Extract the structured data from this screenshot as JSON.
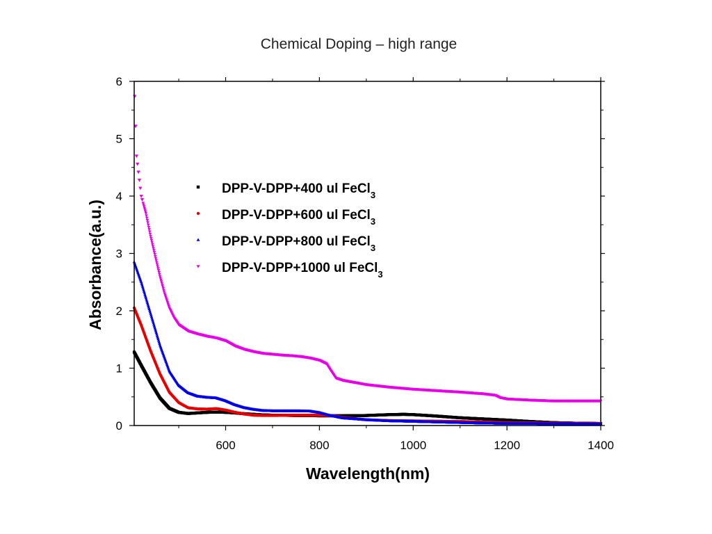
{
  "page": {
    "title": "Chemical Doping – high range"
  },
  "chart_data": {
    "type": "scatter",
    "title": "Chemical Doping – high range",
    "xlabel": "Wavelength(nm)",
    "ylabel": "Absorbance(a.u.)",
    "xlim": [
      405,
      1400
    ],
    "ylim": [
      0,
      6
    ],
    "x_ticks": [
      600,
      800,
      1000,
      1200,
      1400
    ],
    "y_ticks": [
      0,
      1,
      2,
      3,
      4,
      5,
      6
    ],
    "grid": false,
    "legend_position": "center-left",
    "series": [
      {
        "name": "DPP-V-DPP+400 ul FeCl3",
        "name_main": "DPP-V-DPP+400 ul FeCl",
        "name_sub": "3",
        "color": "#000000",
        "marker": "square",
        "points": [
          [
            405,
            1.28
          ],
          [
            420,
            1.05
          ],
          [
            440,
            0.75
          ],
          [
            460,
            0.48
          ],
          [
            480,
            0.3
          ],
          [
            500,
            0.23
          ],
          [
            520,
            0.21
          ],
          [
            540,
            0.22
          ],
          [
            560,
            0.23
          ],
          [
            580,
            0.235
          ],
          [
            600,
            0.23
          ],
          [
            620,
            0.22
          ],
          [
            640,
            0.205
          ],
          [
            660,
            0.195
          ],
          [
            680,
            0.185
          ],
          [
            700,
            0.18
          ],
          [
            750,
            0.175
          ],
          [
            800,
            0.17
          ],
          [
            850,
            0.17
          ],
          [
            900,
            0.175
          ],
          [
            950,
            0.19
          ],
          [
            980,
            0.195
          ],
          [
            1000,
            0.19
          ],
          [
            1050,
            0.165
          ],
          [
            1100,
            0.135
          ],
          [
            1150,
            0.115
          ],
          [
            1200,
            0.095
          ],
          [
            1250,
            0.07
          ],
          [
            1300,
            0.05
          ],
          [
            1350,
            0.04
          ],
          [
            1400,
            0.035
          ]
        ]
      },
      {
        "name": "DPP-V-DPP+600 ul FeCl3",
        "name_main": "DPP-V-DPP+600 ul FeCl",
        "name_sub": "3",
        "color": "#e60000",
        "marker": "circle",
        "points": [
          [
            405,
            2.05
          ],
          [
            420,
            1.75
          ],
          [
            440,
            1.3
          ],
          [
            460,
            0.9
          ],
          [
            480,
            0.58
          ],
          [
            500,
            0.4
          ],
          [
            520,
            0.31
          ],
          [
            540,
            0.29
          ],
          [
            560,
            0.285
          ],
          [
            580,
            0.295
          ],
          [
            600,
            0.27
          ],
          [
            620,
            0.23
          ],
          [
            640,
            0.2
          ],
          [
            660,
            0.18
          ],
          [
            680,
            0.175
          ],
          [
            700,
            0.175
          ],
          [
            750,
            0.18
          ],
          [
            800,
            0.18
          ],
          [
            830,
            0.17
          ],
          [
            850,
            0.14
          ],
          [
            900,
            0.1
          ],
          [
            950,
            0.085
          ],
          [
            1000,
            0.08
          ],
          [
            1050,
            0.075
          ],
          [
            1100,
            0.07
          ],
          [
            1150,
            0.06
          ],
          [
            1200,
            0.05
          ],
          [
            1300,
            0.04
          ],
          [
            1400,
            0.035
          ]
        ]
      },
      {
        "name": "DPP-V-DPP+800 ul FeCl3",
        "name_main": "DPP-V-DPP+800 ul FeCl",
        "name_sub": "3",
        "color": "#0000e6",
        "marker": "triangle-up",
        "points": [
          [
            405,
            2.85
          ],
          [
            420,
            2.5
          ],
          [
            440,
            1.95
          ],
          [
            460,
            1.4
          ],
          [
            480,
            0.95
          ],
          [
            500,
            0.7
          ],
          [
            520,
            0.57
          ],
          [
            540,
            0.51
          ],
          [
            560,
            0.49
          ],
          [
            580,
            0.48
          ],
          [
            600,
            0.43
          ],
          [
            620,
            0.36
          ],
          [
            640,
            0.31
          ],
          [
            660,
            0.28
          ],
          [
            680,
            0.26
          ],
          [
            700,
            0.255
          ],
          [
            750,
            0.255
          ],
          [
            780,
            0.25
          ],
          [
            800,
            0.225
          ],
          [
            820,
            0.18
          ],
          [
            850,
            0.13
          ],
          [
            900,
            0.1
          ],
          [
            950,
            0.08
          ],
          [
            1000,
            0.07
          ],
          [
            1050,
            0.06
          ],
          [
            1100,
            0.05
          ],
          [
            1150,
            0.04
          ],
          [
            1200,
            0.035
          ],
          [
            1300,
            0.03
          ],
          [
            1400,
            0.025
          ]
        ]
      },
      {
        "name": "DPP-V-DPP+1000 ul FeCl3",
        "name_main": "DPP-V-DPP+1000 ul FeCl",
        "name_sub": "3",
        "color": "#e600e6",
        "marker": "triangle-down",
        "points": [
          [
            405,
            6.0
          ],
          [
            410,
            4.7
          ],
          [
            415,
            4.35
          ],
          [
            420,
            4.0
          ],
          [
            430,
            3.7
          ],
          [
            440,
            3.3
          ],
          [
            450,
            2.95
          ],
          [
            460,
            2.6
          ],
          [
            470,
            2.3
          ],
          [
            480,
            2.05
          ],
          [
            490,
            1.88
          ],
          [
            500,
            1.76
          ],
          [
            520,
            1.65
          ],
          [
            540,
            1.6
          ],
          [
            560,
            1.56
          ],
          [
            580,
            1.53
          ],
          [
            600,
            1.48
          ],
          [
            620,
            1.39
          ],
          [
            640,
            1.33
          ],
          [
            660,
            1.29
          ],
          [
            680,
            1.26
          ],
          [
            700,
            1.245
          ],
          [
            720,
            1.23
          ],
          [
            740,
            1.22
          ],
          [
            760,
            1.205
          ],
          [
            780,
            1.18
          ],
          [
            800,
            1.14
          ],
          [
            815,
            1.08
          ],
          [
            825,
            0.95
          ],
          [
            835,
            0.83
          ],
          [
            850,
            0.79
          ],
          [
            870,
            0.76
          ],
          [
            900,
            0.715
          ],
          [
            950,
            0.67
          ],
          [
            1000,
            0.635
          ],
          [
            1050,
            0.61
          ],
          [
            1100,
            0.585
          ],
          [
            1150,
            0.555
          ],
          [
            1175,
            0.53
          ],
          [
            1185,
            0.49
          ],
          [
            1200,
            0.465
          ],
          [
            1250,
            0.445
          ],
          [
            1300,
            0.43
          ],
          [
            1350,
            0.43
          ],
          [
            1400,
            0.43
          ]
        ]
      }
    ]
  }
}
